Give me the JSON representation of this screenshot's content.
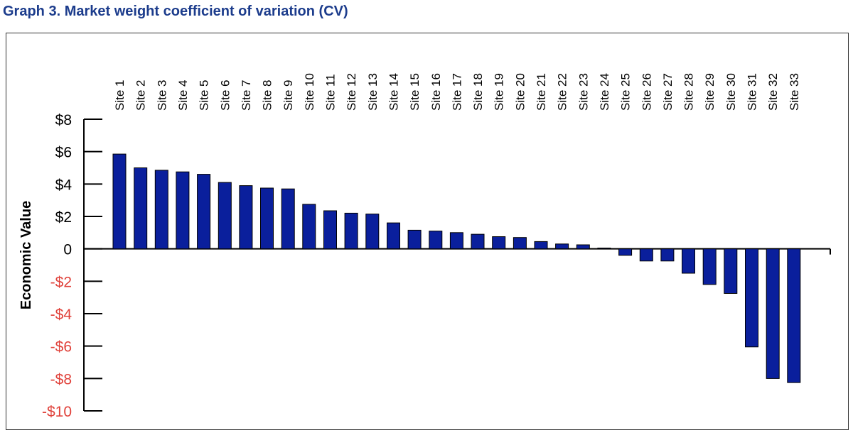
{
  "title": "Graph 3.  Market weight coefficient of variation (CV)",
  "colors": {
    "title": "#1c3c8c",
    "bar_fill": "#0a1f9c",
    "bar_stroke": "#000000",
    "axis": "#000000",
    "positive_tick": "#000000",
    "negative_tick": "#e0413a"
  },
  "chart_data": {
    "type": "bar",
    "title": "",
    "xlabel": "",
    "ylabel": "Economic Value",
    "ylim": [
      -10,
      8
    ],
    "yticks": [
      8,
      6,
      4,
      2,
      0,
      -2,
      -4,
      -6,
      -8,
      -10
    ],
    "ytick_labels": [
      "$8",
      "$6",
      "$4",
      "$2",
      "0",
      "-$2",
      "-$4",
      "-$6",
      "-$8",
      "-$10"
    ],
    "grid": false,
    "legend": "none",
    "categories": [
      "Site 1",
      "Site 2",
      "Site 3",
      "Site 4",
      "Site 5",
      "Site 6",
      "Site 7",
      "Site 8",
      "Site 9",
      "Site 10",
      "Site 11",
      "Site 12",
      "Site 13",
      "Site 14",
      "Site 15",
      "Site 16",
      "Site 17",
      "Site 18",
      "Site 19",
      "Site 20",
      "Site 21",
      "Site 22",
      "Site 23",
      "Site 24",
      "Site 25",
      "Site 26",
      "Site 27",
      "Site 28",
      "Site 29",
      "Site 30",
      "Site 31",
      "Site 32",
      "Site 33"
    ],
    "values": [
      5.85,
      5.0,
      4.85,
      4.75,
      4.6,
      4.1,
      3.9,
      3.75,
      3.7,
      2.75,
      2.35,
      2.2,
      2.15,
      1.6,
      1.15,
      1.1,
      1.0,
      0.9,
      0.75,
      0.7,
      0.45,
      0.3,
      0.25,
      0.05,
      -0.4,
      -0.75,
      -0.75,
      -1.5,
      -2.2,
      -2.75,
      -6.05,
      -8.0,
      -8.25
    ]
  }
}
